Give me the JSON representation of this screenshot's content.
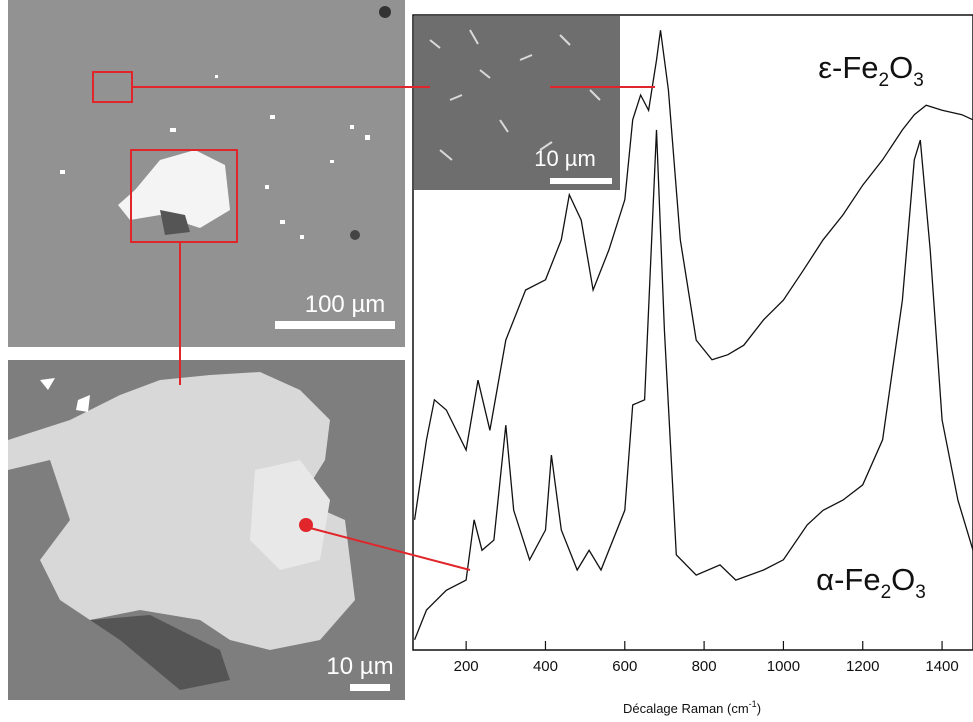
{
  "images": {
    "overview_scale": "100 µm",
    "detail_scale": "10 µm",
    "inset_scale": "10 µm"
  },
  "chart_data": {
    "type": "line",
    "x_label": [
      "Décalage Raman (cm",
      "-1",
      ")"
    ],
    "xlim": [
      66,
      1478
    ],
    "ylim": [
      0,
      100
    ],
    "xticks": [
      200,
      400,
      600,
      800,
      1000,
      1200,
      1400
    ],
    "series": [
      {
        "name": [
          "ε-Fe",
          "2",
          "O",
          "3"
        ],
        "color": "#111111",
        "x": [
          70,
          100,
          120,
          150,
          200,
          230,
          260,
          300,
          350,
          400,
          440,
          460,
          490,
          520,
          560,
          600,
          620,
          640,
          660,
          680,
          690,
          710,
          740,
          780,
          820,
          860,
          900,
          950,
          1000,
          1050,
          1100,
          1150,
          1200,
          1250,
          1300,
          1330,
          1360,
          1400,
          1450,
          1478
        ],
        "values": [
          20.5,
          33.1,
          39.4,
          37.8,
          31.5,
          42.5,
          34.6,
          48.8,
          56.7,
          58.3,
          64.6,
          71.7,
          67.7,
          56.7,
          63,
          70.9,
          83.5,
          87.4,
          85,
          92.9,
          97.6,
          88.2,
          64.6,
          48.8,
          45.7,
          46.5,
          48,
          52,
          55.1,
          59.8,
          64.6,
          68.5,
          73.2,
          77.2,
          81.9,
          84.3,
          85.8,
          85,
          84.3,
          83.5
        ]
      },
      {
        "name": [
          "α-Fe",
          "2",
          "O",
          "3"
        ],
        "color": "#111111",
        "x": [
          70,
          100,
          150,
          200,
          220,
          240,
          270,
          300,
          320,
          360,
          400,
          415,
          440,
          480,
          510,
          540,
          600,
          620,
          650,
          680,
          700,
          730,
          780,
          840,
          880,
          950,
          1000,
          1060,
          1100,
          1150,
          1200,
          1250,
          1300,
          1330,
          1345,
          1370,
          1400,
          1440,
          1478
        ],
        "values": [
          1.6,
          6.3,
          9.4,
          11,
          20.5,
          15.7,
          17.3,
          35.4,
          22,
          14.2,
          18.9,
          30.7,
          18.9,
          12.6,
          15.7,
          12.6,
          22,
          38.6,
          39.4,
          81.9,
          50.4,
          15,
          11.8,
          13.4,
          11,
          12.6,
          14.2,
          19.7,
          22,
          23.6,
          26,
          33.1,
          55.1,
          77.2,
          80.3,
          63,
          36.2,
          23.6,
          15.7
        ]
      }
    ]
  }
}
